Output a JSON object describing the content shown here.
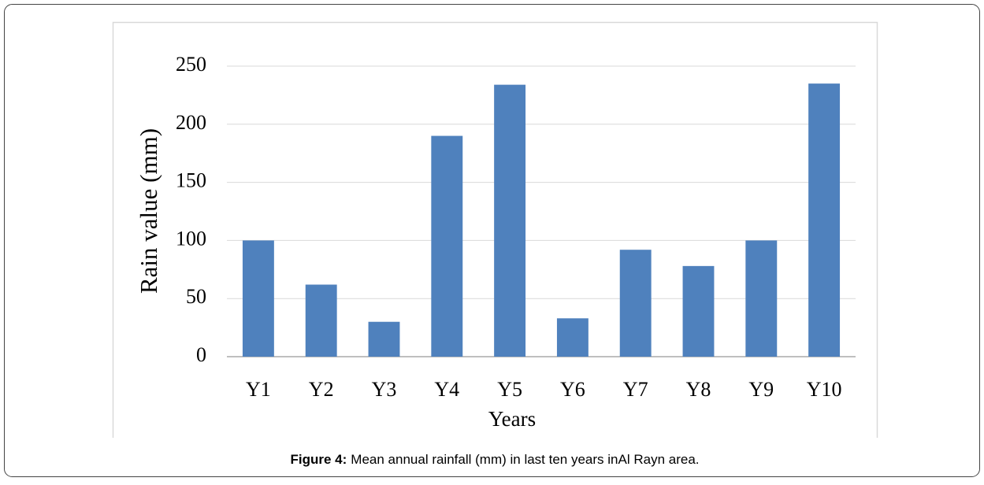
{
  "chart_data": {
    "type": "bar",
    "x_label": "Years",
    "y_label": "Rain value (mm)",
    "categories": [
      "Y1",
      "Y2",
      "Y3",
      "Y4",
      "Y5",
      "Y6",
      "Y7",
      "Y8",
      "Y9",
      "Y10"
    ],
    "values": [
      100,
      62,
      30,
      190,
      234,
      33,
      92,
      78,
      100,
      235
    ],
    "color": "#4f81bd",
    "ylim": [
      0,
      250
    ],
    "yticks": [
      0,
      50,
      100,
      150,
      200,
      250
    ],
    "grid": true
  },
  "caption": {
    "label": "Figure 4:",
    "text": "Mean annual rainfall (mm) in last ten years inAl Rayn area."
  }
}
